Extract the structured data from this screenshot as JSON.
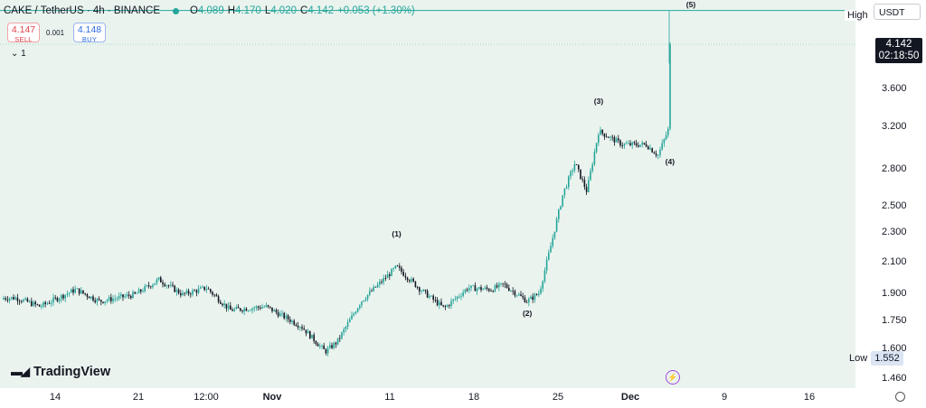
{
  "header": {
    "symbol": "CAKE / TetherUS · 4h · BINANCE",
    "open_label": "O",
    "open": "4.089",
    "high_label": "H",
    "high": "4.170",
    "low_label": "L",
    "low": "4.020",
    "close_label": "C",
    "close": "4.142",
    "change": "+0.053 (+1.30%)"
  },
  "trade": {
    "sell_price": "4.147",
    "sell_label": "SELL",
    "spread": "0.001",
    "buy_price": "4.148",
    "buy_label": "BUY"
  },
  "indicator_row": "⌄ 1",
  "currency_button": "USDT",
  "high_marker_label": "High",
  "low_marker_label": "Low",
  "low_marker_value": "1.552",
  "last_price": "4.142",
  "countdown": "02:18:50",
  "brand": "TradingView",
  "icons": [
    "chevron-down-icon",
    "tradingview-logo-icon",
    "lightning-icon",
    "settings-icon"
  ],
  "colors": {
    "up": "#26a69a",
    "down": "#131722",
    "background": "#eaf3ee",
    "high_line": "#26a69a"
  },
  "chart_data": {
    "type": "candlestick",
    "symbol": "CAKE / TetherUS",
    "interval": "4h",
    "exchange": "BINANCE",
    "y_scale": "log",
    "y_ticks": [
      3.6,
      3.2,
      2.8,
      2.5,
      2.3,
      2.1,
      1.9,
      1.75,
      1.6,
      1.46
    ],
    "y_tick_labels": [
      "3.600",
      "3.200",
      "2.800",
      "2.500",
      "2.300",
      "2.100",
      "1.900",
      "1.750",
      "1.600",
      "1.460"
    ],
    "ylim": [
      1.43,
      4.6
    ],
    "x_tick_labels": [
      "14",
      "21",
      "12:00",
      "Nov",
      "11",
      "18",
      "25",
      "Dec",
      "9",
      "16"
    ],
    "bold_x_ticks": [
      "Nov",
      "Dec"
    ],
    "high_value": 4.6,
    "low_value": 1.552,
    "last_close": 4.142,
    "anchors": [
      {
        "t": "Oct 10",
        "close": 1.88
      },
      {
        "t": "Oct 12",
        "close": 1.83
      },
      {
        "t": "Oct 15",
        "close": 1.93
      },
      {
        "t": "Oct 17",
        "close": 1.86
      },
      {
        "t": "Oct 20",
        "close": 1.9
      },
      {
        "t": "Oct 22",
        "close": 1.99
      },
      {
        "t": "Oct 24",
        "close": 1.9
      },
      {
        "t": "Oct 26",
        "close": 1.94
      },
      {
        "t": "Oct 28",
        "close": 1.81
      },
      {
        "t": "Oct 31",
        "close": 1.83
      },
      {
        "t": "Nov 3",
        "close": 1.72
      },
      {
        "t": "Nov 5",
        "close": 1.59
      },
      {
        "t": "Nov 6",
        "close": 1.64
      },
      {
        "t": "Nov 8",
        "close": 1.86
      },
      {
        "t": "Nov 11",
        "close": 2.07
      },
      {
        "t": "Nov 13",
        "close": 1.93
      },
      {
        "t": "Nov 15",
        "close": 1.82
      },
      {
        "t": "Nov 17",
        "close": 1.94
      },
      {
        "t": "Nov 19",
        "close": 1.93
      },
      {
        "t": "Nov 20",
        "close": 1.96
      },
      {
        "t": "Nov 22",
        "close": 1.86
      },
      {
        "t": "Nov 23",
        "close": 1.91
      },
      {
        "t": "Nov 24",
        "close": 2.22
      },
      {
        "t": "Nov 25",
        "close": 2.6
      },
      {
        "t": "Nov 26",
        "close": 2.86
      },
      {
        "t": "Nov 27",
        "close": 2.62
      },
      {
        "t": "Nov 28",
        "close": 3.16
      },
      {
        "t": "Nov 30",
        "close": 3.03
      },
      {
        "t": "Dec 2",
        "close": 3.03
      },
      {
        "t": "Dec 3",
        "close": 2.93
      },
      {
        "t": "Dec 4",
        "close": 3.22
      },
      {
        "t": "Dec 5",
        "close": 3.55
      },
      {
        "t": "Dec 6",
        "close": 4.142
      }
    ],
    "wave_labels": [
      {
        "label": "(1)",
        "t": "Nov 11",
        "price": 2.25
      },
      {
        "label": "(2)",
        "t": "Nov 22",
        "price": 1.76
      },
      {
        "label": "(3)",
        "t": "Nov 28",
        "price": 3.4
      },
      {
        "label": "(4)",
        "t": "Dec 4",
        "price": 2.82
      },
      {
        "label": "(5)",
        "t": "Dec 7",
        "price": 4.6
      }
    ]
  }
}
